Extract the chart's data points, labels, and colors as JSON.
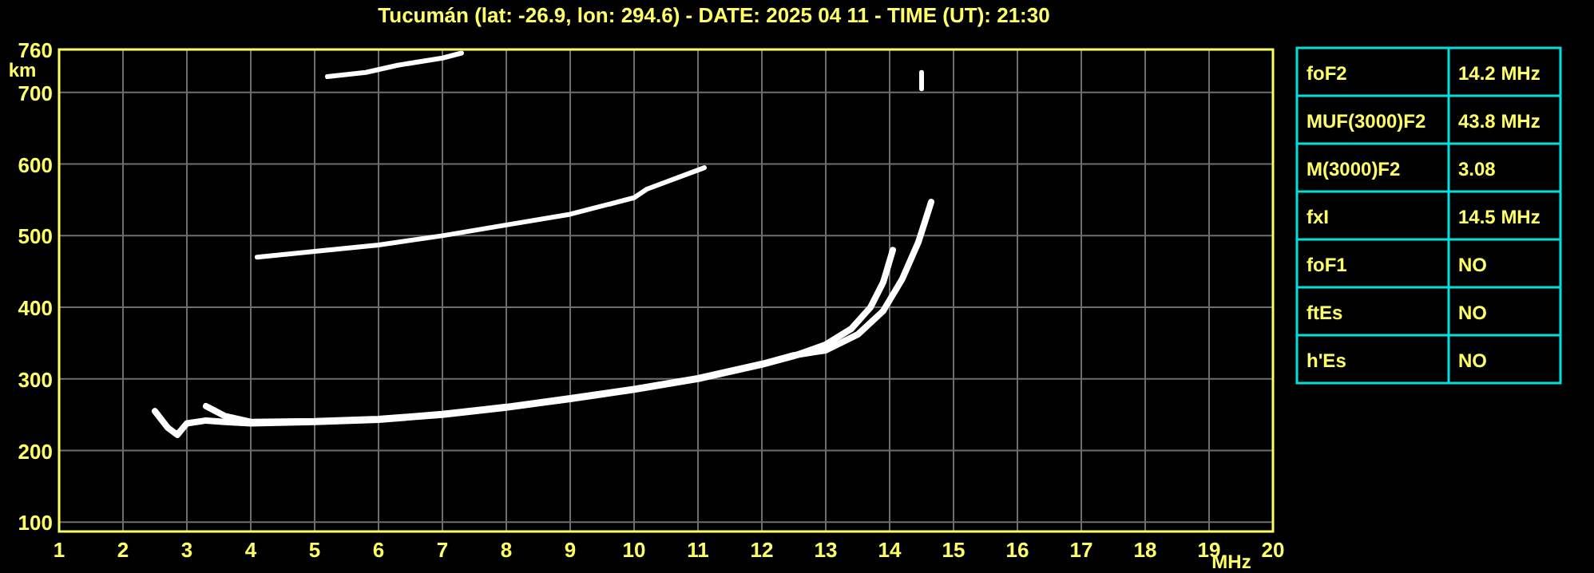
{
  "chart_data": [
    {
      "type": "line",
      "title": "Tucumán (lat: -26.9, lon: 294.6) - DATE: 2025 04 11 - TIME (UT): 21:30",
      "xlabel": "MHz",
      "ylabel": "km",
      "xlim": [
        1,
        20
      ],
      "ylim": [
        87,
        760
      ],
      "xticks": [
        1,
        2,
        3,
        4,
        5,
        6,
        7,
        8,
        9,
        10,
        11,
        12,
        13,
        14,
        15,
        16,
        17,
        18,
        19,
        20
      ],
      "yticks": [
        100,
        200,
        300,
        400,
        500,
        600,
        700,
        760
      ],
      "grid": true,
      "marker": "none",
      "line_style": "solid",
      "series": [
        {
          "color": "#ffffff",
          "x": [
            2.5,
            2.7,
            2.85,
            3.0,
            3.3,
            3.6,
            4,
            5,
            6,
            7,
            8,
            9,
            10,
            11,
            12,
            12.5,
            13,
            13.4,
            13.7,
            13.9,
            14.05
          ],
          "values": [
            255,
            232,
            222,
            238,
            242,
            240,
            238,
            240,
            243,
            250,
            260,
            272,
            285,
            300,
            320,
            332,
            348,
            370,
            400,
            435,
            480
          ]
        },
        {
          "color": "#ffffff",
          "x": [
            3.3,
            3.6,
            4,
            5,
            6,
            7,
            8,
            9,
            10,
            11,
            12,
            12.5,
            13,
            13.5,
            13.9,
            14.2,
            14.45,
            14.65
          ],
          "values": [
            262,
            248,
            240,
            241,
            244,
            251,
            261,
            273,
            286,
            301,
            321,
            333,
            340,
            362,
            395,
            440,
            491,
            547
          ]
        },
        {
          "color": "#ffffff",
          "x": [
            14.5,
            14.5
          ],
          "values": [
            705,
            728
          ]
        },
        {
          "color": "#ffffff",
          "x": [
            4.1,
            5,
            6,
            7,
            8,
            9,
            10,
            10.2,
            11.1
          ],
          "values": [
            470,
            478,
            487,
            500,
            515,
            530,
            553,
            565,
            595
          ]
        },
        {
          "color": "#ffffff",
          "x": [
            5.2,
            5.8,
            6.3,
            7.0,
            7.3
          ],
          "values": [
            722,
            728,
            738,
            748,
            755
          ]
        }
      ]
    },
    {
      "type": "other",
      "annotations": [
        "foF2",
        "14.2 MHz",
        "MUF(3000)F2",
        "43.8 MHz",
        "M(3000)F2",
        "3.08",
        "fxI",
        "14.5 MHz",
        "foF1",
        "NO",
        "ftEs",
        "NO",
        "h'Es",
        "NO"
      ]
    }
  ]
}
